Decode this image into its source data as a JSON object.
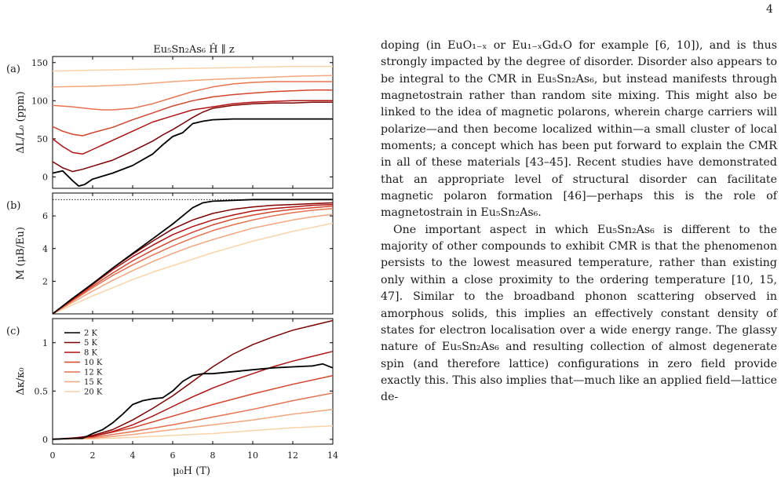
{
  "page_number": "4",
  "figure": {
    "title": "Eu₅Sn₂As₆ Ĥ ∥ z",
    "panels": [
      {
        "label": "(a)",
        "ylabel": "ΔL/L₀ (ppm)",
        "yticks": [
          "0",
          "50",
          "100",
          "150"
        ]
      },
      {
        "label": "(b)",
        "ylabel": "M (μB/Eu)",
        "yticks": [
          "2",
          "4",
          "6"
        ]
      },
      {
        "label": "(c)",
        "ylabel": "Δκ/κ₀",
        "yticks": [
          "0",
          "0.5",
          "1"
        ]
      }
    ],
    "xlabel": "μ₀H (T)",
    "xticks": [
      "0",
      "2",
      "4",
      "6",
      "8",
      "10",
      "12",
      "14"
    ],
    "legend": [
      "2 K",
      "5 K",
      "8 K",
      "10 K",
      "12 K",
      "15 K",
      "20 K"
    ],
    "series_colors": [
      "#000000",
      "#7f0000",
      "#b31212",
      "#d4452c",
      "#e8714f",
      "#f4a57d",
      "#fbd3a8"
    ]
  },
  "chart_data": [
    {
      "type": "line",
      "panel": "(a)",
      "title": "Eu₅Sn₂As₆ Ĥ ∥ z",
      "xlabel": "μ₀H (T)",
      "ylabel": "ΔL/L₀ (ppm)",
      "xlim": [
        0,
        14
      ],
      "ylim": [
        -15,
        158
      ],
      "series": [
        {
          "name": "2 K",
          "x": [
            0,
            0.5,
            1,
            1.3,
            1.6,
            2,
            3,
            4,
            5,
            5.5,
            6,
            6.5,
            7,
            7.5,
            8,
            9,
            10,
            11,
            12,
            13,
            14
          ],
          "y": [
            5,
            8,
            -5,
            -12,
            -10,
            -3,
            5,
            15,
            30,
            42,
            53,
            58,
            70,
            73,
            75,
            76,
            76,
            76,
            76,
            76,
            76
          ]
        },
        {
          "name": "5 K",
          "x": [
            0,
            0.5,
            1,
            1.5,
            2,
            3,
            4,
            5,
            5.5,
            6,
            6.5,
            7,
            7.5,
            8,
            9,
            10,
            11,
            12,
            13,
            14
          ],
          "y": [
            20,
            12,
            7,
            10,
            14,
            22,
            34,
            47,
            55,
            62,
            70,
            78,
            85,
            90,
            94,
            96,
            97,
            97,
            98,
            98
          ]
        },
        {
          "name": "8 K",
          "x": [
            0,
            0.5,
            1,
            1.5,
            2,
            3,
            4,
            5,
            6,
            7,
            8,
            9,
            10,
            11,
            12,
            13,
            14
          ],
          "y": [
            50,
            40,
            32,
            30,
            36,
            48,
            60,
            72,
            80,
            88,
            92,
            96,
            98,
            99,
            100,
            100,
            100
          ]
        },
        {
          "name": "10 K",
          "x": [
            0,
            0.5,
            1,
            1.5,
            2,
            3,
            4,
            5,
            6,
            7,
            8,
            9,
            10,
            11,
            12,
            13,
            14
          ],
          "y": [
            66,
            60,
            56,
            54,
            58,
            65,
            75,
            84,
            93,
            100,
            105,
            108,
            110,
            112,
            113,
            114,
            114
          ]
        },
        {
          "name": "12 K",
          "x": [
            0,
            1,
            2,
            2.5,
            3,
            4,
            5,
            6,
            7,
            8,
            9,
            10,
            11,
            12,
            13,
            14
          ],
          "y": [
            94,
            92,
            89,
            88,
            88,
            90,
            96,
            104,
            112,
            118,
            122,
            124,
            125,
            125,
            125,
            125
          ]
        },
        {
          "name": "15 K",
          "x": [
            0,
            2,
            4,
            6,
            8,
            10,
            12,
            14
          ],
          "y": [
            118,
            119,
            121,
            125,
            128,
            130,
            132,
            133
          ]
        },
        {
          "name": "20 K",
          "x": [
            0,
            2,
            4,
            6,
            8,
            10,
            12,
            14
          ],
          "y": [
            139,
            140,
            141,
            142,
            143,
            144,
            145,
            145
          ]
        }
      ]
    },
    {
      "type": "line",
      "panel": "(b)",
      "xlabel": "μ₀H (T)",
      "ylabel": "M (μB/Eu)",
      "xlim": [
        0,
        14
      ],
      "ylim": [
        0,
        7.4
      ],
      "saturation_line_y": 7,
      "series": [
        {
          "name": "2 K",
          "x": [
            0,
            1,
            2,
            3,
            4,
            5,
            6,
            6.5,
            7,
            7.5,
            8,
            9,
            10,
            11,
            12,
            13,
            14
          ],
          "y": [
            0,
            0.95,
            1.85,
            2.8,
            3.7,
            4.6,
            5.5,
            6.0,
            6.5,
            6.8,
            6.9,
            6.95,
            7,
            7,
            7,
            7,
            7
          ]
        },
        {
          "name": "5 K",
          "x": [
            0,
            1,
            2,
            3,
            4,
            5,
            6,
            7,
            8,
            9,
            10,
            11,
            12,
            13,
            14
          ],
          "y": [
            0,
            0.95,
            1.85,
            2.8,
            3.65,
            4.45,
            5.2,
            5.75,
            6.15,
            6.4,
            6.55,
            6.65,
            6.7,
            6.75,
            6.8
          ]
        },
        {
          "name": "8 K",
          "x": [
            0,
            1,
            2,
            3,
            4,
            5,
            6,
            7,
            8,
            9,
            10,
            11,
            12,
            13,
            14
          ],
          "y": [
            0,
            0.9,
            1.8,
            2.7,
            3.5,
            4.2,
            4.85,
            5.35,
            5.75,
            6.05,
            6.3,
            6.45,
            6.55,
            6.65,
            6.7
          ]
        },
        {
          "name": "10 K",
          "x": [
            0,
            1,
            2,
            3,
            4,
            5,
            6,
            7,
            8,
            9,
            10,
            11,
            12,
            13,
            14
          ],
          "y": [
            0,
            0.85,
            1.7,
            2.5,
            3.25,
            3.9,
            4.5,
            5.0,
            5.45,
            5.8,
            6.05,
            6.25,
            6.4,
            6.5,
            6.6
          ]
        },
        {
          "name": "12 K",
          "x": [
            0,
            1,
            2,
            3,
            4,
            5,
            6,
            7,
            8,
            9,
            10,
            11,
            12,
            13,
            14
          ],
          "y": [
            0,
            0.8,
            1.6,
            2.35,
            3.0,
            3.6,
            4.15,
            4.65,
            5.1,
            5.45,
            5.75,
            6.0,
            6.2,
            6.35,
            6.45
          ]
        },
        {
          "name": "15 K",
          "x": [
            0,
            1,
            2,
            3,
            4,
            5,
            6,
            7,
            8,
            9,
            10,
            11,
            12,
            13,
            14
          ],
          "y": [
            0,
            0.7,
            1.4,
            2.05,
            2.65,
            3.2,
            3.7,
            4.15,
            4.55,
            4.9,
            5.25,
            5.5,
            5.75,
            5.95,
            6.1
          ]
        },
        {
          "name": "20 K",
          "x": [
            0,
            1,
            2,
            3,
            4,
            5,
            6,
            7,
            8,
            9,
            10,
            11,
            12,
            13,
            14
          ],
          "y": [
            0,
            0.55,
            1.1,
            1.6,
            2.1,
            2.55,
            2.95,
            3.35,
            3.75,
            4.1,
            4.45,
            4.75,
            5.05,
            5.3,
            5.55
          ]
        }
      ]
    },
    {
      "type": "line",
      "panel": "(c)",
      "xlabel": "μ₀H (T)",
      "ylabel": "Δκ/κ₀",
      "xlim": [
        0,
        14
      ],
      "ylim": [
        -0.05,
        1.25
      ],
      "legend_position": "top-left",
      "series": [
        {
          "name": "2 K",
          "x": [
            0,
            1,
            1.5,
            2,
            2.5,
            3,
            3.5,
            4,
            4.5,
            5,
            5.5,
            6,
            6.5,
            7,
            7.5,
            8,
            9,
            10,
            11,
            12,
            13,
            13.5,
            14
          ],
          "y": [
            0,
            0.01,
            0.01,
            0.06,
            0.1,
            0.17,
            0.26,
            0.36,
            0.4,
            0.42,
            0.43,
            0.5,
            0.6,
            0.66,
            0.68,
            0.68,
            0.7,
            0.72,
            0.74,
            0.75,
            0.76,
            0.78,
            0.74
          ]
        },
        {
          "name": "5 K",
          "x": [
            0,
            1,
            2,
            3,
            4,
            5,
            6,
            7,
            8,
            9,
            10,
            11,
            12,
            13,
            14
          ],
          "y": [
            0,
            0.01,
            0.04,
            0.1,
            0.2,
            0.32,
            0.45,
            0.6,
            0.75,
            0.88,
            0.98,
            1.06,
            1.13,
            1.18,
            1.23
          ]
        },
        {
          "name": "8 K",
          "x": [
            0,
            1,
            2,
            3,
            4,
            5,
            6,
            7,
            8,
            9,
            10,
            11,
            12,
            13,
            14
          ],
          "y": [
            0,
            0.01,
            0.03,
            0.08,
            0.15,
            0.24,
            0.34,
            0.44,
            0.53,
            0.61,
            0.68,
            0.75,
            0.81,
            0.86,
            0.91
          ]
        },
        {
          "name": "10 K",
          "x": [
            0,
            2,
            4,
            6,
            8,
            10,
            12,
            14
          ],
          "y": [
            0,
            0.03,
            0.12,
            0.24,
            0.36,
            0.47,
            0.57,
            0.66
          ]
        },
        {
          "name": "12 K",
          "x": [
            0,
            2,
            4,
            6,
            8,
            10,
            12,
            14
          ],
          "y": [
            0,
            0.02,
            0.08,
            0.15,
            0.23,
            0.31,
            0.4,
            0.48
          ]
        },
        {
          "name": "15 K",
          "x": [
            0,
            2,
            4,
            6,
            8,
            10,
            12,
            14
          ],
          "y": [
            0,
            0.01,
            0.05,
            0.1,
            0.15,
            0.2,
            0.26,
            0.31
          ]
        },
        {
          "name": "20 K",
          "x": [
            0,
            2,
            4,
            6,
            8,
            10,
            12,
            14
          ],
          "y": [
            0,
            0.005,
            0.02,
            0.04,
            0.06,
            0.09,
            0.12,
            0.14
          ]
        }
      ]
    }
  ],
  "body": {
    "para1": "doping (in EuO₁₋ₓ or Eu₁₋ₓGdₓO for example [6, 10]), and is thus strongly impacted by the degree of disorder. Disorder also appears to be integral to the CMR in Eu₅Sn₂As₆, but instead manifests through magnetostrain rather than random site mixing. This might also be linked to the idea of magnetic polarons, wherein charge carriers will polarize—and then become localized within—a small cluster of local moments; a concept which has been put forward to explain the CMR in all of these materials [43–45]. Recent studies have demonstrated that an appropriate level of structural disorder can facilitate magnetic polaron formation [46]—perhaps this is the role of magnetostrain in Eu₅Sn₂As₆.",
    "para2": "One important aspect in which Eu₅Sn₂As₆ is different to the majority of other compounds to exhibit CMR is that the phenomenon persists to the lowest measured temperature, rather than existing only within a close proximity to the ordering temperature [10, 15, 47]. Similar to the broadband phonon scattering observed in amorphous solids, this implies an effectively constant density of states for electron localisation over a wide energy range. The glassy nature of Eu₅Sn₂As₆ and resulting collection of almost degenerate spin (and therefore lattice) configurations in zero field provide exactly this. This also implies that—much like an applied field—lattice de-"
  }
}
